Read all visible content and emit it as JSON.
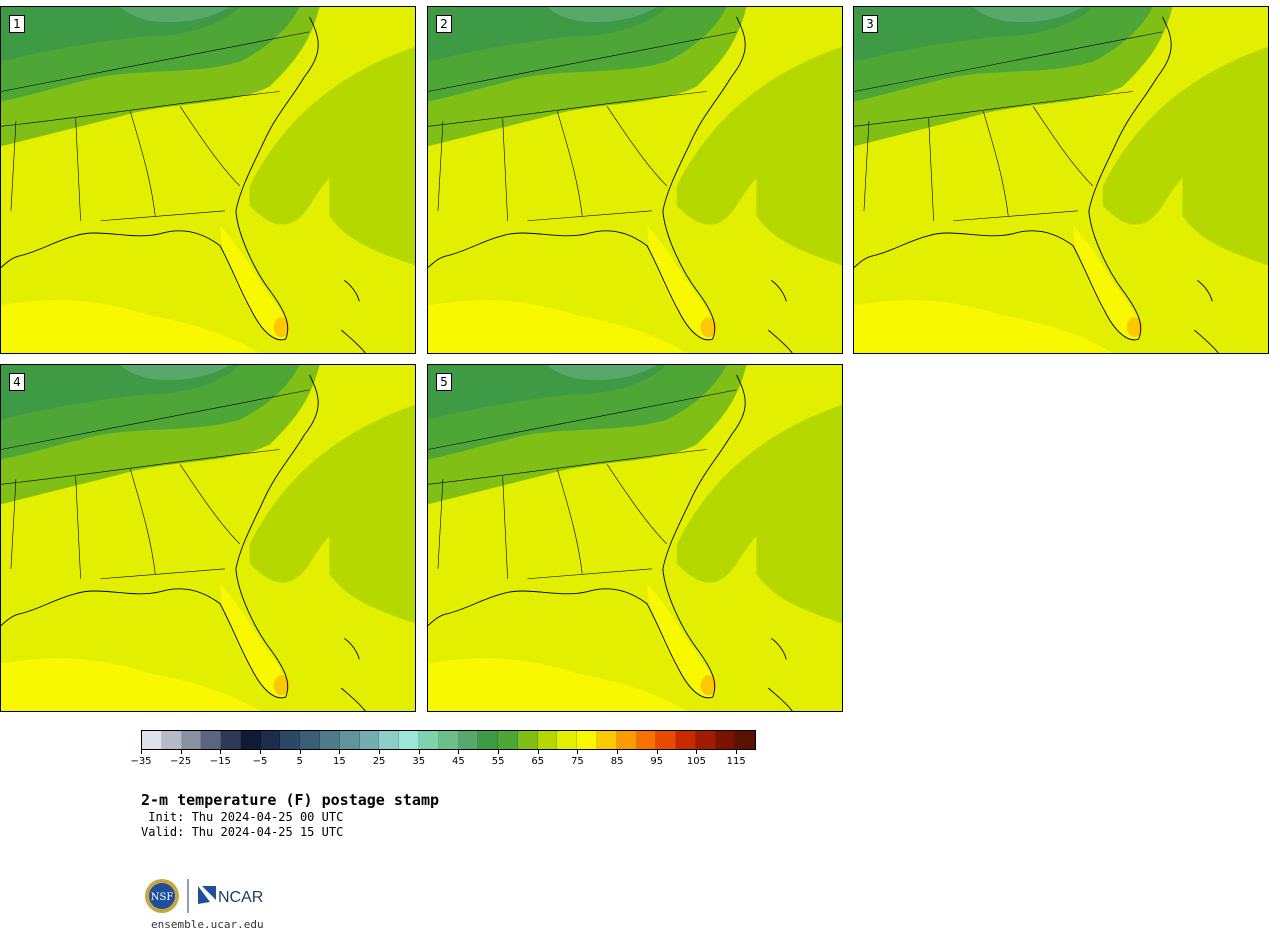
{
  "panels": [
    {
      "label": "1"
    },
    {
      "label": "2"
    },
    {
      "label": "3"
    },
    {
      "label": "4"
    },
    {
      "label": "5"
    }
  ],
  "colorbar": {
    "colors": [
      "#dde3ea",
      "#b4bac8",
      "#8a91a3",
      "#5a6580",
      "#2c3a58",
      "#101a34",
      "#1c2c4c",
      "#2b4866",
      "#3a5d78",
      "#4e7a8a",
      "#5f949b",
      "#74aeb0",
      "#8ccfc6",
      "#9be6d6",
      "#7fd3ab",
      "#6cbf88",
      "#57a86a",
      "#3f9a45",
      "#4ea636",
      "#7fbf16",
      "#b5d900",
      "#e2ef00",
      "#f8f800",
      "#fcc800",
      "#fa9c00",
      "#f87000",
      "#e84a00",
      "#c82a00",
      "#a01c00",
      "#7a1400",
      "#5c1200"
    ],
    "tick_labels": [
      "−35",
      "−25",
      "−15",
      "−5",
      "5",
      "15",
      "25",
      "35",
      "45",
      "55",
      "65",
      "75",
      "85",
      "95",
      "105",
      "115"
    ]
  },
  "title": "2-m temperature (F) postage stamp",
  "init": " Init: Thu 2024-04-25 00 UTC",
  "valid": "Valid: Thu 2024-04-25 15 UTC",
  "logos": {
    "nsf": "NSF",
    "ncar": "NCAR"
  },
  "site": "ensemble.ucar.edu"
}
